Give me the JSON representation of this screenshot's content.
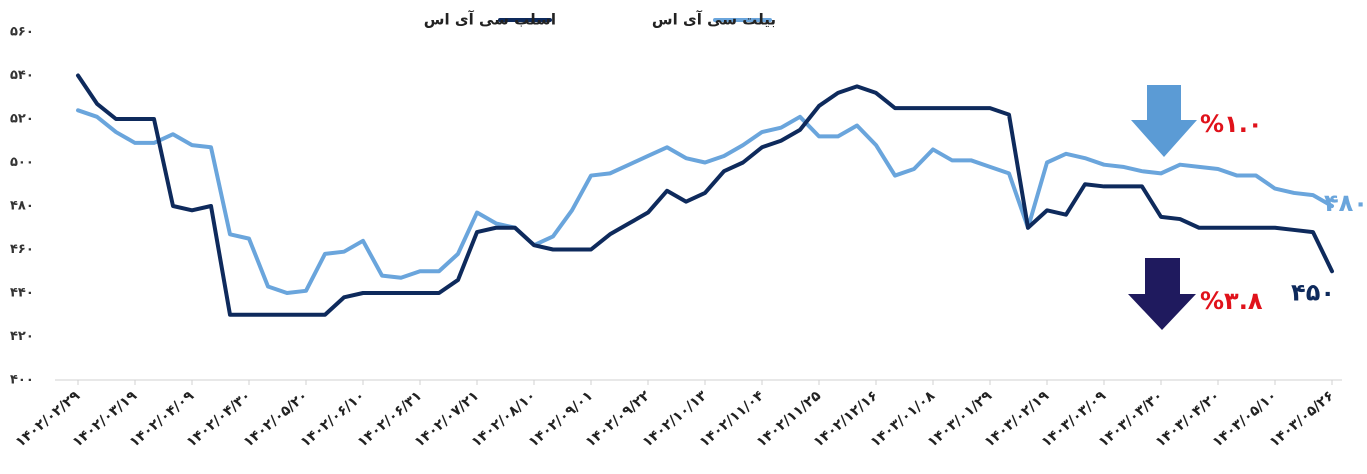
{
  "chart_data": {
    "type": "line",
    "categories": [
      "۱۴۰۲/۰۲/۲۹",
      null,
      null,
      "۱۴۰۲/۰۳/۱۹",
      null,
      null,
      "۱۴۰۲/۰۴/۰۹",
      null,
      null,
      "۱۴۰۲/۰۴/۳۰",
      null,
      null,
      "۱۴۰۲/۰۵/۲۰",
      null,
      null,
      "۱۴۰۲/۰۶/۱۰",
      null,
      null,
      "۱۴۰۲/۰۶/۳۱",
      null,
      null,
      "۱۴۰۲/۰۷/۲۱",
      null,
      null,
      "۱۴۰۲/۰۸/۱۰",
      null,
      null,
      "۱۴۰۲/۰۹/۰۱",
      null,
      null,
      "۱۴۰۲/۰۹/۲۲",
      null,
      null,
      "۱۴۰۲/۱۰/۱۳",
      null,
      null,
      "۱۴۰۲/۱۱/۰۴",
      null,
      null,
      "۱۴۰۲/۱۱/۲۵",
      null,
      null,
      "۱۴۰۲/۱۲/۱۶",
      null,
      null,
      "۱۴۰۳/۰۱/۰۸",
      null,
      null,
      "۱۴۰۳/۰۱/۲۹",
      null,
      null,
      "۱۴۰۳/۰۲/۱۹",
      null,
      null,
      "۱۴۰۳/۰۳/۰۹",
      null,
      null,
      "۱۴۰۳/۰۳/۳۰",
      null,
      null,
      "۱۴۰۳/۰۴/۲۰",
      null,
      null,
      "۱۴۰۳/۰۵/۱۰",
      null,
      null,
      "۱۴۰۳/۰۵/۲۶"
    ],
    "series": [
      {
        "name": "اسلب سی آی اس",
        "color": "#0e2a5c",
        "values": [
          540,
          527,
          520,
          520,
          520,
          480,
          478,
          480,
          430,
          430,
          430,
          430,
          430,
          430,
          438,
          440,
          440,
          440,
          440,
          440,
          446,
          468,
          470,
          470,
          462,
          460,
          460,
          460,
          467,
          472,
          477,
          487,
          482,
          486,
          496,
          500,
          507,
          510,
          515,
          526,
          532,
          535,
          532,
          525,
          525,
          525,
          525,
          525,
          525,
          522,
          470,
          478,
          476,
          490,
          489,
          489,
          489,
          475,
          474,
          470,
          470,
          470,
          470,
          470,
          469,
          468,
          450
        ],
        "value_labels": [
          null,
          null,
          null,
          null,
          null,
          null,
          null,
          null,
          null,
          null,
          null,
          null,
          null,
          null,
          null,
          null,
          null,
          null,
          null,
          null,
          null,
          null,
          null,
          null,
          null,
          null,
          null,
          null,
          null,
          null,
          null,
          null,
          null,
          null,
          null,
          null,
          null,
          null,
          null,
          null,
          null,
          null,
          null,
          null,
          null,
          null,
          null,
          null,
          null,
          null,
          null,
          null,
          null,
          null,
          null,
          null,
          null,
          null,
          null,
          null,
          null,
          null,
          null,
          null,
          null,
          null,
          "۴۵۰"
        ]
      },
      {
        "name": "بیلت سی آی اس",
        "color": "#6aa5dc",
        "values": [
          524,
          521,
          514,
          509,
          509,
          513,
          508,
          507,
          467,
          465,
          443,
          440,
          441,
          458,
          459,
          464,
          448,
          447,
          450,
          450,
          458,
          477,
          472,
          470,
          462,
          466,
          478,
          494,
          495,
          499,
          503,
          507,
          502,
          500,
          503,
          508,
          514,
          516,
          521,
          512,
          512,
          517,
          508,
          494,
          497,
          506,
          501,
          501,
          498,
          495,
          470,
          500,
          504,
          502,
          499,
          498,
          496,
          495,
          499,
          498,
          497,
          494,
          494,
          488,
          486,
          485,
          480
        ],
        "value_labels": [
          null,
          null,
          null,
          null,
          null,
          null,
          null,
          null,
          null,
          null,
          null,
          null,
          null,
          null,
          null,
          null,
          null,
          null,
          null,
          null,
          null,
          null,
          null,
          null,
          null,
          null,
          null,
          null,
          null,
          null,
          null,
          null,
          null,
          null,
          null,
          null,
          null,
          null,
          null,
          null,
          null,
          null,
          null,
          null,
          null,
          null,
          null,
          null,
          null,
          null,
          null,
          null,
          null,
          null,
          null,
          null,
          null,
          null,
          null,
          null,
          null,
          null,
          null,
          null,
          null,
          null,
          "۴۸۰"
        ]
      }
    ],
    "ylim": [
      400,
      560
    ],
    "yticks": [
      {
        "value": 400,
        "label": "۴۰۰"
      },
      {
        "value": 420,
        "label": "۴۲۰"
      },
      {
        "value": 440,
        "label": "۴۴۰"
      },
      {
        "value": 460,
        "label": "۴۶۰"
      },
      {
        "value": 480,
        "label": "۴۸۰"
      },
      {
        "value": 500,
        "label": "۵۰۰"
      },
      {
        "value": 520,
        "label": "۵۲۰"
      },
      {
        "value": 540,
        "label": "۵۴۰"
      },
      {
        "value": 560,
        "label": "۵۶۰"
      }
    ],
    "grid": false,
    "annotations": [
      {
        "text": "%۱.۰",
        "series": 1
      },
      {
        "text": "%۳.۸",
        "series": 0
      }
    ]
  }
}
